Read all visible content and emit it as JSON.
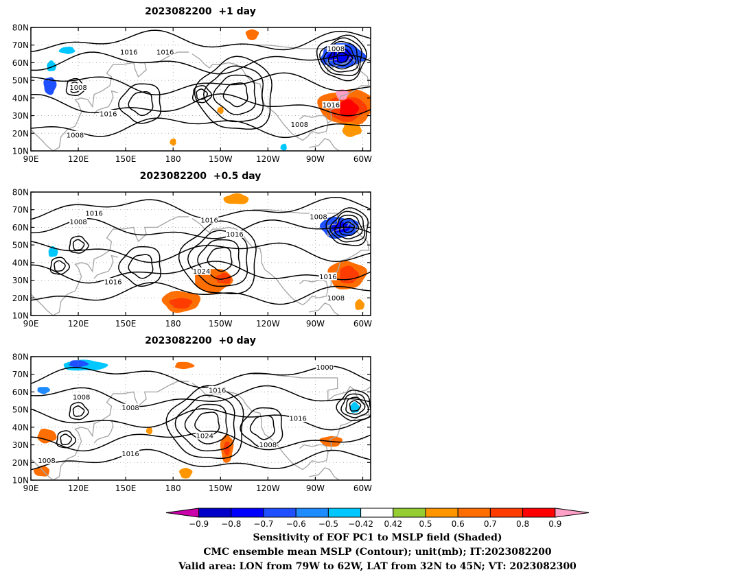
{
  "panels": [
    {
      "title": "2023082200  +1 day",
      "lows": [
        {
          "lon": 287,
          "lat": 63,
          "rings": 6
        },
        {
          "lon": 198,
          "lat": 42,
          "rings": 2
        },
        {
          "lon": 118,
          "lat": 46,
          "rings": 2
        }
      ],
      "highs": [
        {
          "lon": 220,
          "lat": 42,
          "rings": 4
        },
        {
          "lon": 160,
          "lat": 37,
          "rings": 2
        }
      ],
      "contour_labels": [
        {
          "text": "1016",
          "lon": 152,
          "lat": 66
        },
        {
          "text": "1016",
          "lon": 175,
          "lat": 66
        },
        {
          "text": "1008",
          "lon": 283,
          "lat": 68
        },
        {
          "text": "1008",
          "lon": 120,
          "lat": 46
        },
        {
          "text": "1016",
          "lon": 280,
          "lat": 36
        },
        {
          "text": "1016",
          "lon": 139,
          "lat": 31
        },
        {
          "text": "1008",
          "lon": 260,
          "lat": 25
        },
        {
          "text": "1008",
          "lon": 118,
          "lat": 19
        }
      ],
      "shading": [
        {
          "lon": 287,
          "lat": 64,
          "rx": 14,
          "ry": 7,
          "value": -0.6
        },
        {
          "lon": 286,
          "lat": 64,
          "rx": 8,
          "ry": 4,
          "value": -0.7
        },
        {
          "lon": 102,
          "lat": 47,
          "rx": 4,
          "ry": 5,
          "value": -0.6
        },
        {
          "lon": 103,
          "lat": 58,
          "rx": 3,
          "ry": 3,
          "value": -0.42
        },
        {
          "lon": 113,
          "lat": 67,
          "rx": 5,
          "ry": 2,
          "value": -0.42
        },
        {
          "lon": 250,
          "lat": 12,
          "rx": 2,
          "ry": 2,
          "value": -0.42
        },
        {
          "lon": 290,
          "lat": 35,
          "rx": 18,
          "ry": 10,
          "value": 0.6
        },
        {
          "lon": 290,
          "lat": 34,
          "rx": 12,
          "ry": 7,
          "value": 0.7
        },
        {
          "lon": 291,
          "lat": 34,
          "rx": 6,
          "ry": 5,
          "value": 0.8
        },
        {
          "lon": 287,
          "lat": 42,
          "rx": 4,
          "ry": 3,
          "value": 0.9
        },
        {
          "lon": 293,
          "lat": 22,
          "rx": 6,
          "ry": 4,
          "value": 0.5
        },
        {
          "lon": 230,
          "lat": 76,
          "rx": 4,
          "ry": 3,
          "value": 0.6
        },
        {
          "lon": 210,
          "lat": 33,
          "rx": 2,
          "ry": 2,
          "value": 0.5
        },
        {
          "lon": 180,
          "lat": 15,
          "rx": 2,
          "ry": 2,
          "value": 0.5
        }
      ]
    },
    {
      "title": "2023082200  +0.5 day",
      "lows": [
        {
          "lon": 291,
          "lat": 60,
          "rings": 5
        },
        {
          "lon": 120,
          "lat": 50,
          "rings": 2
        },
        {
          "lon": 108,
          "lat": 38,
          "rings": 2
        }
      ],
      "highs": [
        {
          "lon": 210,
          "lat": 42,
          "rings": 4
        },
        {
          "lon": 160,
          "lat": 38,
          "rings": 2
        }
      ],
      "contour_labels": [
        {
          "text": "1016",
          "lon": 130,
          "lat": 68
        },
        {
          "text": "1008",
          "lon": 120,
          "lat": 63
        },
        {
          "text": "1016",
          "lon": 203,
          "lat": 64
        },
        {
          "text": "1008",
          "lon": 272,
          "lat": 66
        },
        {
          "text": "1016",
          "lon": 219,
          "lat": 56
        },
        {
          "text": "1024",
          "lon": 198,
          "lat": 35
        },
        {
          "text": "1016",
          "lon": 142,
          "lat": 29
        },
        {
          "text": "1016",
          "lon": 278,
          "lat": 32
        },
        {
          "text": "1008",
          "lon": 283,
          "lat": 20
        }
      ],
      "shading": [
        {
          "lon": 285,
          "lat": 60,
          "rx": 12,
          "ry": 6,
          "value": -0.6
        },
        {
          "lon": 286,
          "lat": 60,
          "rx": 6,
          "ry": 3,
          "value": -0.7
        },
        {
          "lon": 185,
          "lat": 18,
          "rx": 12,
          "ry": 6,
          "value": 0.6
        },
        {
          "lon": 185,
          "lat": 17,
          "rx": 7,
          "ry": 3,
          "value": 0.7
        },
        {
          "lon": 205,
          "lat": 30,
          "rx": 12,
          "ry": 7,
          "value": 0.6
        },
        {
          "lon": 212,
          "lat": 31,
          "rx": 5,
          "ry": 3,
          "value": 0.7
        },
        {
          "lon": 290,
          "lat": 33,
          "rx": 12,
          "ry": 8,
          "value": 0.6
        },
        {
          "lon": 291,
          "lat": 33,
          "rx": 6,
          "ry": 5,
          "value": 0.7
        },
        {
          "lon": 298,
          "lat": 16,
          "rx": 3,
          "ry": 3,
          "value": 0.5
        },
        {
          "lon": 220,
          "lat": 76,
          "rx": 8,
          "ry": 3,
          "value": 0.5
        },
        {
          "lon": 104,
          "lat": 46,
          "rx": 3,
          "ry": 3,
          "value": -0.42
        }
      ]
    },
    {
      "title": "2023082200  +0 day",
      "lows": [
        {
          "lon": 295,
          "lat": 52,
          "rings": 4
        },
        {
          "lon": 120,
          "lat": 49,
          "rings": 2
        },
        {
          "lon": 112,
          "lat": 33,
          "rings": 2
        }
      ],
      "highs": [
        {
          "lon": 202,
          "lat": 42,
          "rings": 4
        },
        {
          "lon": 237,
          "lat": 40,
          "rings": 2
        }
      ],
      "contour_labels": [
        {
          "text": "1000",
          "lon": 276,
          "lat": 74
        },
        {
          "text": "1008",
          "lon": 122,
          "lat": 57
        },
        {
          "text": "1016",
          "lon": 208,
          "lat": 61
        },
        {
          "text": "1008",
          "lon": 153,
          "lat": 51
        },
        {
          "text": "1016",
          "lon": 259,
          "lat": 45
        },
        {
          "text": "1024",
          "lon": 200,
          "lat": 35
        },
        {
          "text": "1008",
          "lon": 240,
          "lat": 30
        },
        {
          "text": "1016",
          "lon": 153,
          "lat": 25
        },
        {
          "text": "1008",
          "lon": 100,
          "lat": 21
        }
      ],
      "shading": [
        {
          "lon": 124,
          "lat": 75,
          "rx": 14,
          "ry": 3,
          "value": -0.42
        },
        {
          "lon": 120,
          "lat": 76,
          "rx": 6,
          "ry": 2,
          "value": -0.6
        },
        {
          "lon": 98,
          "lat": 61,
          "rx": 4,
          "ry": 2,
          "value": -0.5
        },
        {
          "lon": 295,
          "lat": 51,
          "rx": 3,
          "ry": 3,
          "value": -0.42
        },
        {
          "lon": 214,
          "lat": 28,
          "rx": 4,
          "ry": 8,
          "value": 0.6
        },
        {
          "lon": 214,
          "lat": 28,
          "rx": 2,
          "ry": 4,
          "value": 0.7
        },
        {
          "lon": 100,
          "lat": 35,
          "rx": 6,
          "ry": 4,
          "value": 0.6
        },
        {
          "lon": 97,
          "lat": 15,
          "rx": 5,
          "ry": 3,
          "value": 0.6
        },
        {
          "lon": 280,
          "lat": 32,
          "rx": 7,
          "ry": 3,
          "value": 0.6
        },
        {
          "lon": 187,
          "lat": 75,
          "rx": 6,
          "ry": 2,
          "value": 0.6
        },
        {
          "lon": 188,
          "lat": 14,
          "rx": 4,
          "ry": 3,
          "value": 0.5
        },
        {
          "lon": 165,
          "lat": 38,
          "rx": 2,
          "ry": 2,
          "value": 0.5
        }
      ]
    }
  ],
  "axes": {
    "lon_ticks": [
      {
        "value": 90,
        "label": "90E"
      },
      {
        "value": 120,
        "label": "120E"
      },
      {
        "value": 150,
        "label": "150E"
      },
      {
        "value": 180,
        "label": "180"
      },
      {
        "value": 210,
        "label": "150W"
      },
      {
        "value": 240,
        "label": "120W"
      },
      {
        "value": 270,
        "label": "90W"
      },
      {
        "value": 300,
        "label": "60W"
      }
    ],
    "lat_ticks": [
      {
        "value": 80,
        "label": "80N"
      },
      {
        "value": 70,
        "label": "70N"
      },
      {
        "value": 60,
        "label": "60N"
      },
      {
        "value": 50,
        "label": "50N"
      },
      {
        "value": 40,
        "label": "40N"
      },
      {
        "value": 30,
        "label": "30N"
      },
      {
        "value": 20,
        "label": "20N"
      },
      {
        "value": 10,
        "label": "10N"
      }
    ]
  },
  "colorbar": {
    "colors": [
      "#cc00aa",
      "#0000c8",
      "#0000ff",
      "#1e50ff",
      "#1e8cff",
      "#00c8ff",
      "#ffffff",
      "#96cd32",
      "#ff9600",
      "#ff6e00",
      "#ff3c00",
      "#ff0000",
      "#ffa0c8"
    ],
    "labels": [
      "-0.9",
      "-0.8",
      "-0.7",
      "-0.6",
      "-0.5",
      "-0.42",
      "0.42",
      "0.5",
      "0.6",
      "0.7",
      "0.8",
      "0.9"
    ]
  },
  "caption": {
    "line1": "Sensitivity of EOF PC1 to MSLP field (Shaded)",
    "line2": "CMC ensemble mean MSLP (Contour); unit(mb); IT:2023082200",
    "line3": "Valid area: LON from 79W to 62W, LAT from 32N to 45N; VT: 2023082300"
  }
}
